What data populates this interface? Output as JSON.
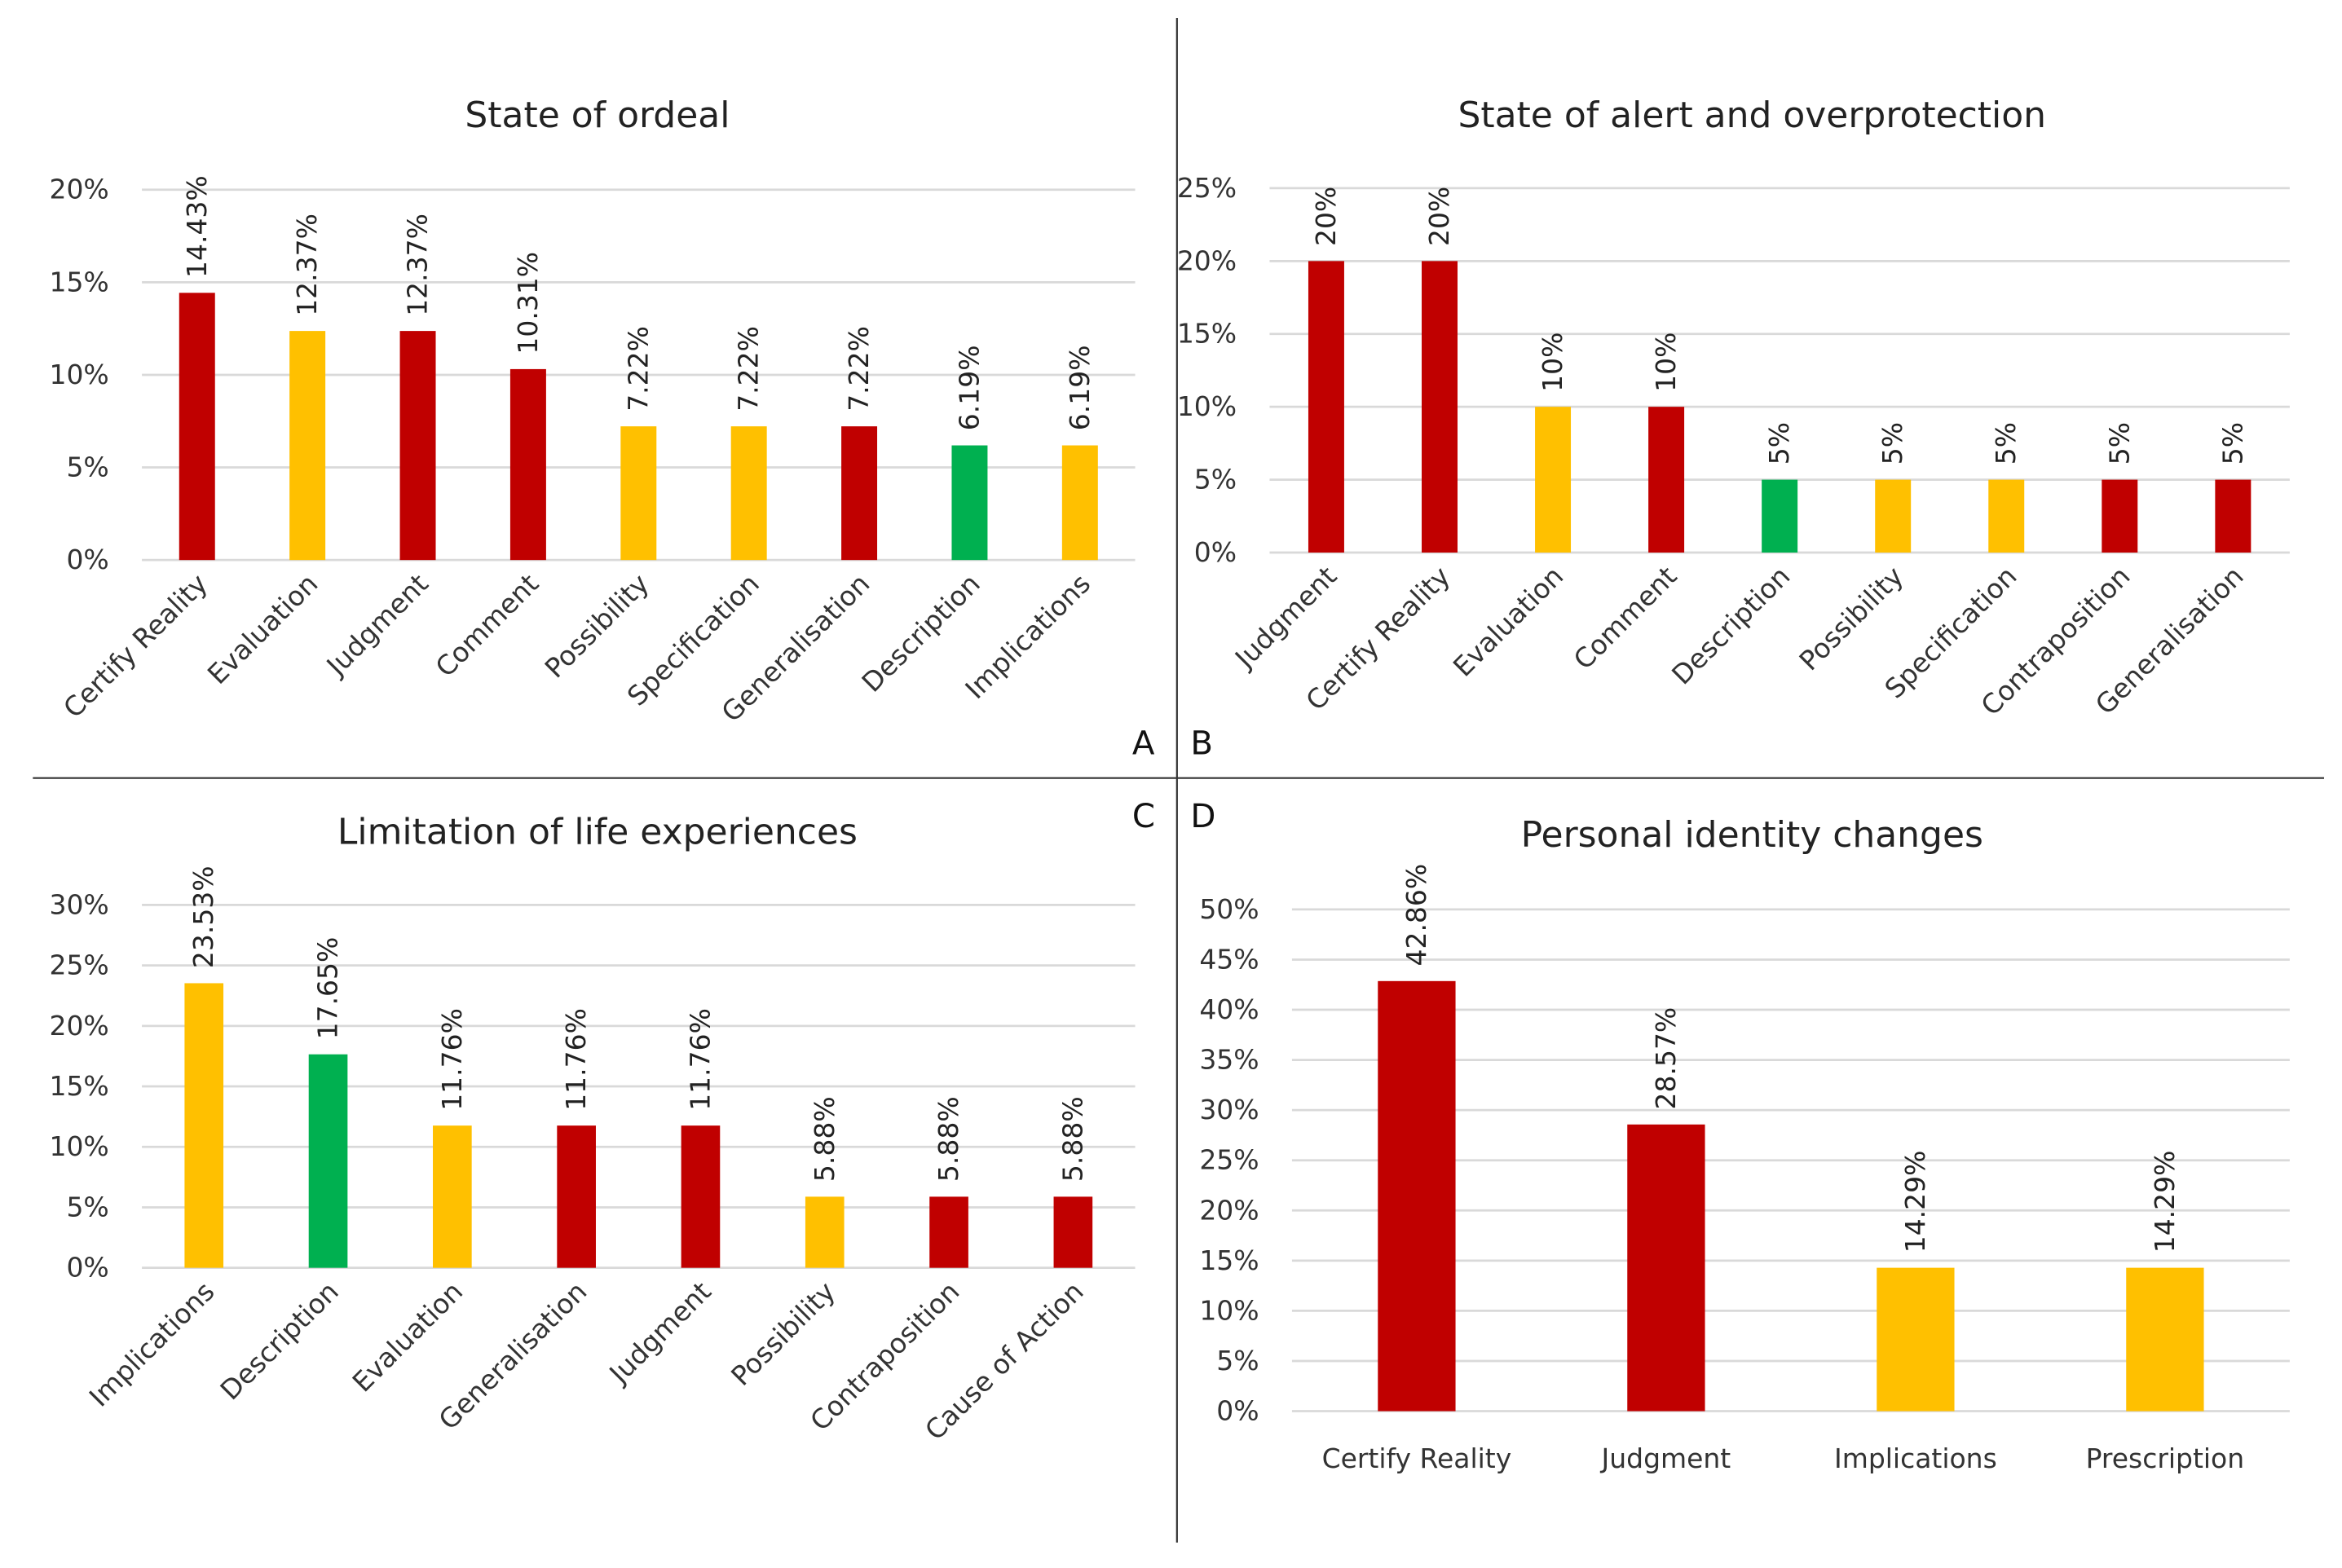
{
  "colors": {
    "red": "#C00000",
    "yellow": "#FFC000",
    "green": "#00B050",
    "grid": "#D9D9D9"
  },
  "chart_data": [
    {
      "panel": "A",
      "type": "bar",
      "title": "State of ordeal",
      "categories": [
        "Certify Reality",
        "Evaluation",
        "Judgment",
        "Comment",
        "Possibility",
        "Specification",
        "Generalisation",
        "Description",
        "Implications"
      ],
      "values": [
        14.43,
        12.37,
        12.37,
        10.31,
        7.22,
        7.22,
        7.22,
        6.19,
        6.19
      ],
      "value_labels": [
        "14.43%",
        "12.37%",
        "12.37%",
        "10.31%",
        "7.22%",
        "7.22%",
        "7.22%",
        "6.19%",
        "6.19%"
      ],
      "bar_colors": [
        "red",
        "yellow",
        "red",
        "red",
        "yellow",
        "yellow",
        "red",
        "green",
        "yellow"
      ],
      "yticks": [
        "0%",
        "5%",
        "10%",
        "15%",
        "20%"
      ],
      "ylim": [
        0,
        20
      ],
      "grid": true,
      "label_rotation": "diagonal"
    },
    {
      "panel": "B",
      "type": "bar",
      "title": "State of alert and overprotection",
      "categories": [
        "Judgment",
        "Certify Reality",
        "Evaluation",
        "Comment",
        "Description",
        "Possibility",
        "Specification",
        "Contraposition",
        "Generalisation"
      ],
      "values": [
        20,
        20,
        10,
        10,
        5,
        5,
        5,
        5,
        5
      ],
      "value_labels": [
        "20%",
        "20%",
        "10%",
        "10%",
        "5%",
        "5%",
        "5%",
        "5%",
        "5%"
      ],
      "bar_colors": [
        "red",
        "red",
        "yellow",
        "red",
        "green",
        "yellow",
        "yellow",
        "red",
        "red"
      ],
      "yticks": [
        "0%",
        "5%",
        "10%",
        "15%",
        "20%",
        "25%"
      ],
      "ylim": [
        0,
        25
      ],
      "grid": true,
      "label_rotation": "diagonal"
    },
    {
      "panel": "C",
      "type": "bar",
      "title": "Limitation of life experiences",
      "categories": [
        "Implications",
        "Description",
        "Evaluation",
        "Generalisation",
        "Judgment",
        "Possibility",
        "Contraposition",
        "Cause of Action"
      ],
      "values": [
        23.53,
        17.65,
        11.76,
        11.76,
        11.76,
        5.88,
        5.88,
        5.88
      ],
      "value_labels": [
        "23.53%",
        "17.65%",
        "11.76%",
        "11.76%",
        "11.76%",
        "5.88%",
        "5.88%",
        "5.88%"
      ],
      "bar_colors": [
        "yellow",
        "green",
        "yellow",
        "red",
        "red",
        "yellow",
        "red",
        "red"
      ],
      "yticks": [
        "0%",
        "5%",
        "10%",
        "15%",
        "20%",
        "25%",
        "30%"
      ],
      "ylim": [
        0,
        30
      ],
      "grid": true,
      "label_rotation": "diagonal"
    },
    {
      "panel": "D",
      "type": "bar",
      "title": "Personal identity changes",
      "categories": [
        "Certify Reality",
        "Judgment",
        "Implications",
        "Prescription"
      ],
      "values": [
        42.86,
        28.57,
        14.29,
        14.29
      ],
      "value_labels": [
        "42.86%",
        "28.57%",
        "14.29%",
        "14.29%"
      ],
      "bar_colors": [
        "red",
        "red",
        "yellow",
        "yellow"
      ],
      "yticks": [
        "0%",
        "5%",
        "10%",
        "15%",
        "20%",
        "25%",
        "30%",
        "35%",
        "40%",
        "45%",
        "50%"
      ],
      "ylim": [
        0,
        50
      ],
      "grid": true,
      "label_rotation": "horizontal"
    }
  ]
}
